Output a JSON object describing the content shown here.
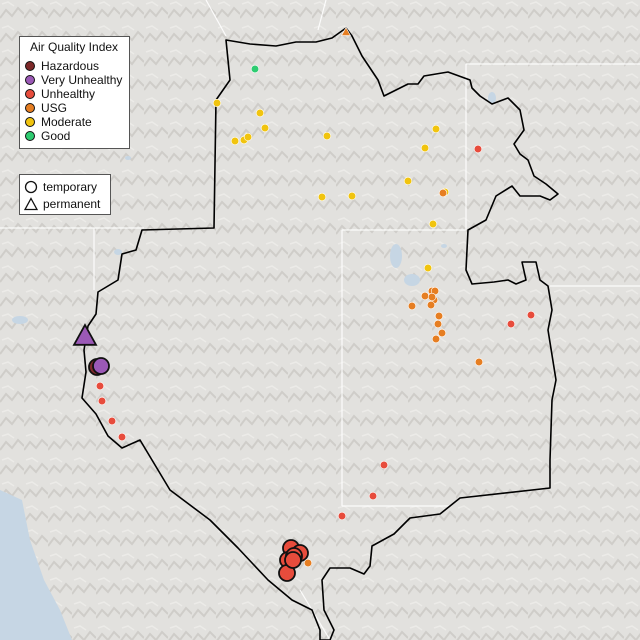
{
  "legend_aqi": {
    "title": "Air Quality Index",
    "items": [
      {
        "label": "Hazardous",
        "color": "#7e2a2a"
      },
      {
        "label": "Very Unhealthy",
        "color": "#9b59b6"
      },
      {
        "label": "Unhealthy",
        "color": "#e74c3c"
      },
      {
        "label": "USG",
        "color": "#e67e22"
      },
      {
        "label": "Moderate",
        "color": "#f1c40f"
      },
      {
        "label": "Good",
        "color": "#2ecc71"
      }
    ]
  },
  "legend_monitor": {
    "items": [
      {
        "label": "temporary",
        "icon": "circle-icon"
      },
      {
        "label": "permanent",
        "icon": "triangle-icon"
      }
    ]
  },
  "monitors": [
    {
      "category": "Good",
      "type": "temporary",
      "size": "small"
    },
    {
      "category": "USG",
      "type": "permanent",
      "size": "small"
    },
    {
      "category": "Moderate",
      "type": "temporary",
      "size": "small"
    },
    {
      "category": "Moderate",
      "type": "temporary",
      "size": "small"
    },
    {
      "category": "Moderate",
      "type": "temporary",
      "size": "small"
    },
    {
      "category": "Moderate",
      "type": "temporary",
      "size": "small"
    },
    {
      "category": "Moderate",
      "type": "temporary",
      "size": "small"
    },
    {
      "category": "Moderate",
      "type": "temporary",
      "size": "small"
    },
    {
      "category": "Moderate",
      "type": "temporary",
      "size": "small"
    },
    {
      "category": "Moderate",
      "type": "temporary",
      "size": "small"
    },
    {
      "category": "Moderate",
      "type": "temporary",
      "size": "small"
    },
    {
      "category": "Moderate",
      "type": "temporary",
      "size": "small"
    },
    {
      "category": "Moderate",
      "type": "temporary",
      "size": "small"
    },
    {
      "category": "Moderate",
      "type": "temporary",
      "size": "small"
    },
    {
      "category": "Moderate",
      "type": "temporary",
      "size": "small"
    },
    {
      "category": "Moderate",
      "type": "temporary",
      "size": "small"
    },
    {
      "category": "Moderate",
      "type": "temporary",
      "size": "small"
    },
    {
      "category": "Unhealthy",
      "type": "temporary",
      "size": "small"
    },
    {
      "category": "USG",
      "type": "temporary",
      "size": "small"
    },
    {
      "category": "USG",
      "type": "temporary",
      "size": "small"
    },
    {
      "category": "USG",
      "type": "temporary",
      "size": "small"
    },
    {
      "category": "USG",
      "type": "temporary",
      "size": "small"
    },
    {
      "category": "USG",
      "type": "temporary",
      "size": "small"
    },
    {
      "category": "USG",
      "type": "temporary",
      "size": "small"
    },
    {
      "category": "USG",
      "type": "temporary",
      "size": "small"
    },
    {
      "category": "USG",
      "type": "temporary",
      "size": "small"
    },
    {
      "category": "USG",
      "type": "temporary",
      "size": "small"
    },
    {
      "category": "USG",
      "type": "temporary",
      "size": "small"
    },
    {
      "category": "USG",
      "type": "temporary",
      "size": "small"
    },
    {
      "category": "USG",
      "type": "temporary",
      "size": "small"
    },
    {
      "category": "Unhealthy",
      "type": "temporary",
      "size": "small"
    },
    {
      "category": "Unhealthy",
      "type": "temporary",
      "size": "small"
    },
    {
      "category": "USG",
      "type": "temporary",
      "size": "small"
    },
    {
      "category": "Very Unhealthy",
      "type": "permanent",
      "size": "large"
    },
    {
      "category": "Hazardous",
      "type": "temporary",
      "size": "large"
    },
    {
      "category": "Very Unhealthy",
      "type": "temporary",
      "size": "large"
    },
    {
      "category": "Unhealthy",
      "type": "temporary",
      "size": "small"
    },
    {
      "category": "Unhealthy",
      "type": "temporary",
      "size": "small"
    },
    {
      "category": "Unhealthy",
      "type": "temporary",
      "size": "small"
    },
    {
      "category": "Unhealthy",
      "type": "temporary",
      "size": "small"
    },
    {
      "category": "Unhealthy",
      "type": "temporary",
      "size": "small"
    },
    {
      "category": "Unhealthy",
      "type": "temporary",
      "size": "small"
    },
    {
      "category": "Unhealthy",
      "type": "temporary",
      "size": "small"
    },
    {
      "category": "Unhealthy",
      "type": "temporary",
      "size": "large"
    },
    {
      "category": "Unhealthy",
      "type": "temporary",
      "size": "large"
    },
    {
      "category": "Unhealthy",
      "type": "temporary",
      "size": "large"
    },
    {
      "category": "Unhealthy",
      "type": "temporary",
      "size": "large"
    },
    {
      "category": "Unhealthy",
      "type": "temporary",
      "size": "large"
    },
    {
      "category": "Unhealthy",
      "type": "temporary",
      "size": "large"
    },
    {
      "category": "USG",
      "type": "temporary",
      "size": "small"
    },
    {
      "category": "Unhealthy",
      "type": "temporary",
      "size": "small"
    }
  ]
}
